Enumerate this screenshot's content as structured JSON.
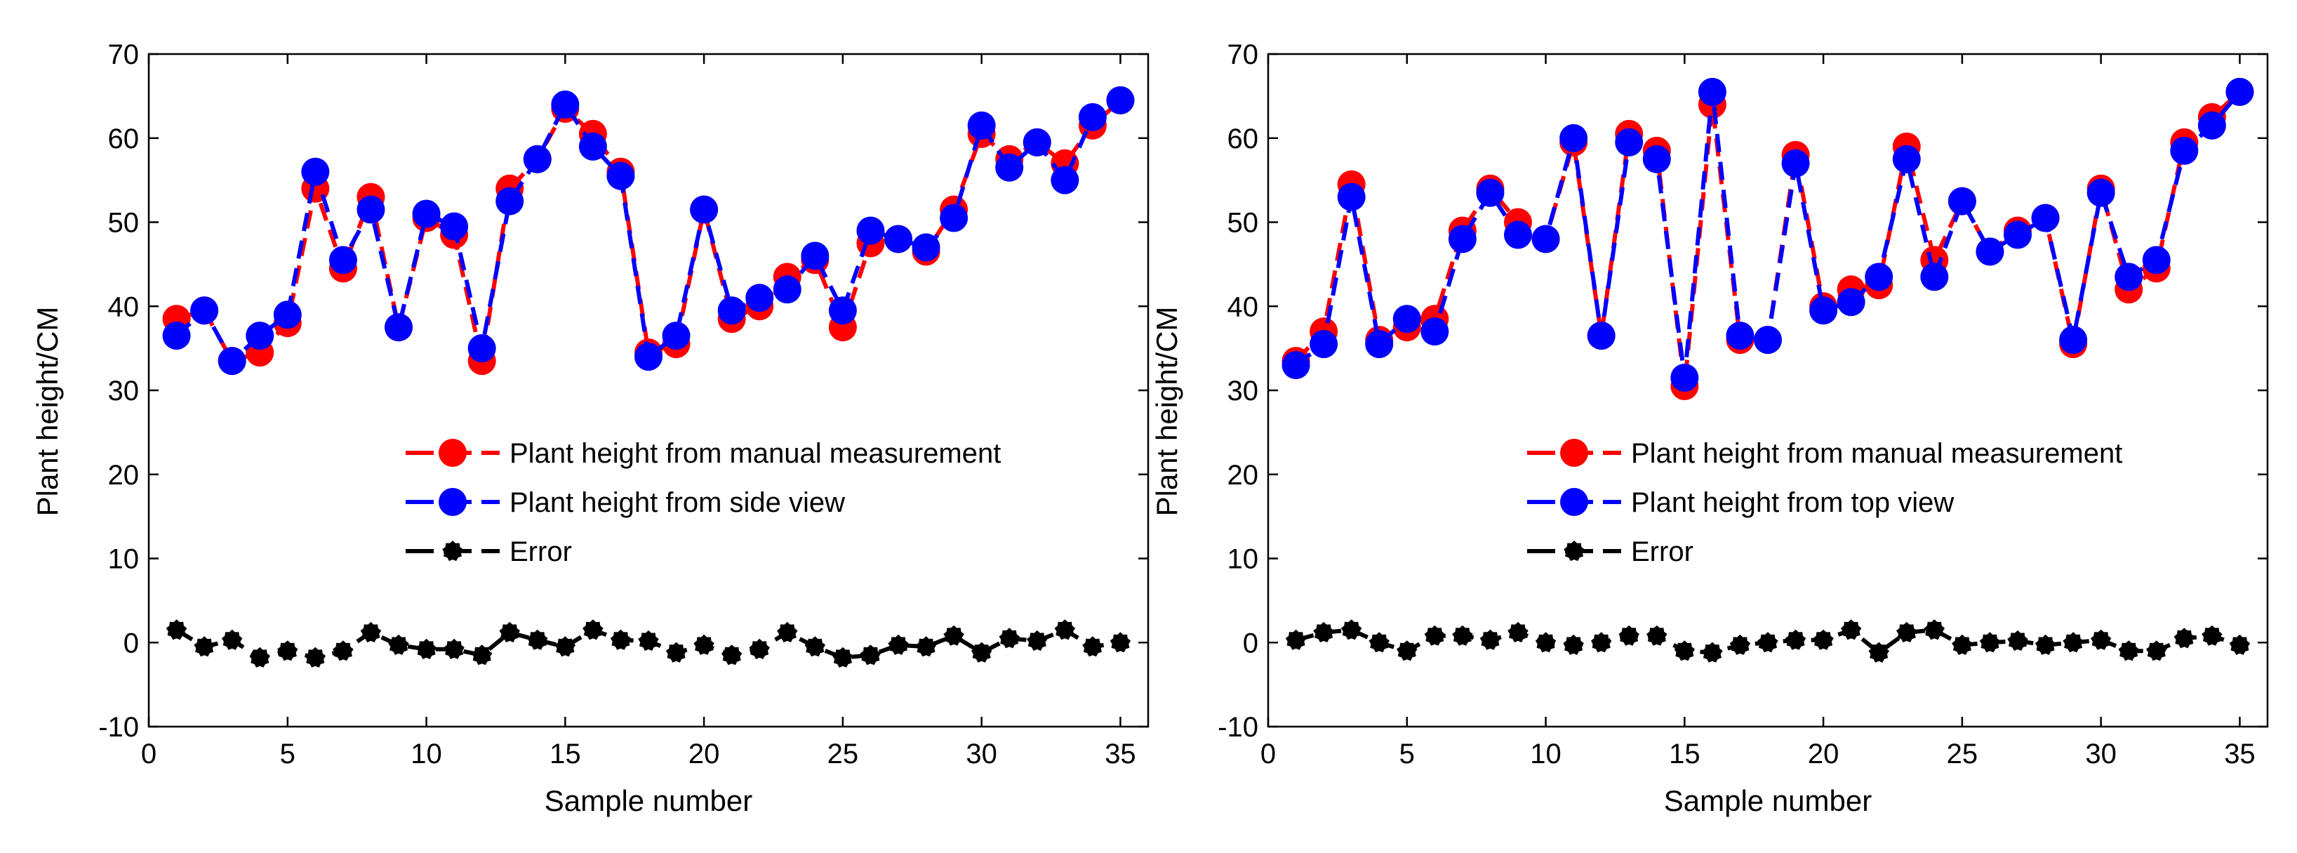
{
  "chart_data": [
    {
      "type": "line",
      "title": "",
      "xlabel": "Sample number",
      "ylabel": "Plant height/CM",
      "xlim": [
        0,
        36
      ],
      "ylim": [
        -10,
        70
      ],
      "xticks": [
        "0",
        "5",
        "10",
        "15",
        "20",
        "25",
        "30",
        "35"
      ],
      "yticks": [
        "-10",
        "0",
        "10",
        "20",
        "30",
        "40",
        "50",
        "60",
        "70"
      ],
      "legend_position": "center",
      "x": [
        1,
        2,
        3,
        4,
        5,
        6,
        7,
        8,
        9,
        10,
        11,
        12,
        13,
        14,
        15,
        16,
        17,
        18,
        19,
        20,
        21,
        22,
        23,
        24,
        25,
        26,
        27,
        28,
        29,
        30,
        31,
        32,
        33,
        34,
        35
      ],
      "series": [
        {
          "name": "Plant height from manual measurement",
          "color": "#ff0000",
          "values": [
            38.5,
            39.5,
            33.5,
            34.5,
            38.0,
            54.0,
            44.5,
            53.0,
            37.5,
            50.5,
            48.5,
            33.5,
            54.0,
            57.5,
            63.5,
            60.5,
            56.0,
            34.5,
            35.5,
            51.5,
            38.5,
            40.0,
            43.5,
            45.5,
            37.5,
            47.5,
            48.0,
            46.5,
            51.5,
            60.5,
            57.5,
            59.5,
            57.0,
            61.5,
            64.5
          ]
        },
        {
          "name": "Plant height from side view",
          "color": "#0000ff",
          "values": [
            36.5,
            39.5,
            33.5,
            36.5,
            39.0,
            56.0,
            45.5,
            51.5,
            37.5,
            51.0,
            49.5,
            35.0,
            52.5,
            57.5,
            64.0,
            59.0,
            55.5,
            34.0,
            36.5,
            51.5,
            39.5,
            41.0,
            42.0,
            46.0,
            39.5,
            49.0,
            48.0,
            47.0,
            50.5,
            61.5,
            56.5,
            59.5,
            55.0,
            62.5,
            64.5
          ]
        },
        {
          "name": "Error",
          "color": "#000000",
          "values": [
            1.5,
            -0.5,
            0.3,
            -1.8,
            -1.0,
            -1.8,
            -1.0,
            1.2,
            -0.3,
            -0.8,
            -0.8,
            -1.5,
            1.2,
            0.3,
            -0.5,
            1.5,
            0.3,
            0.2,
            -1.2,
            -0.3,
            -1.5,
            -0.8,
            1.2,
            -0.5,
            -1.8,
            -1.5,
            -0.3,
            -0.5,
            0.8,
            -1.2,
            0.5,
            0.2,
            1.5,
            -0.5,
            0.0
          ]
        }
      ]
    },
    {
      "type": "line",
      "title": "",
      "xlabel": "Sample number",
      "ylabel": "Plant height/CM",
      "xlim": [
        0,
        36
      ],
      "ylim": [
        -10,
        70
      ],
      "xticks": [
        "0",
        "5",
        "10",
        "15",
        "20",
        "25",
        "30",
        "35"
      ],
      "yticks": [
        "-10",
        "0",
        "10",
        "20",
        "30",
        "40",
        "50",
        "60",
        "70"
      ],
      "legend_position": "center",
      "x": [
        1,
        2,
        3,
        4,
        5,
        6,
        7,
        8,
        9,
        10,
        11,
        12,
        13,
        14,
        15,
        16,
        17,
        18,
        19,
        20,
        21,
        22,
        23,
        24,
        25,
        26,
        27,
        28,
        29,
        30,
        31,
        32,
        33,
        34,
        35
      ],
      "series": [
        {
          "name": "Plant height from manual measurement",
          "color": "#ff0000",
          "values": [
            33.5,
            37.0,
            54.5,
            36.0,
            37.5,
            38.5,
            49.0,
            54.0,
            50.0,
            48.0,
            59.5,
            36.5,
            60.5,
            58.5,
            30.5,
            64.0,
            36.0,
            36.0,
            58.0,
            40.0,
            42.0,
            42.5,
            59.0,
            45.5,
            52.5,
            46.5,
            49.0,
            50.5,
            35.5,
            54.0,
            42.0,
            44.5,
            59.5,
            62.5,
            65.5
          ]
        },
        {
          "name": "Plant height from top view",
          "color": "#0000ff",
          "values": [
            33.0,
            35.5,
            53.0,
            35.5,
            38.5,
            37.0,
            48.0,
            53.5,
            48.5,
            48.0,
            60.0,
            36.5,
            59.5,
            57.5,
            31.5,
            65.5,
            36.5,
            36.0,
            57.0,
            39.5,
            40.5,
            43.5,
            57.5,
            43.5,
            52.5,
            46.5,
            48.5,
            50.5,
            36.0,
            53.5,
            43.5,
            45.5,
            58.5,
            61.5,
            65.5
          ]
        },
        {
          "name": "Error",
          "color": "#000000",
          "values": [
            0.3,
            1.2,
            1.5,
            0.0,
            -1.0,
            0.8,
            0.8,
            0.3,
            1.2,
            0.0,
            -0.3,
            0.0,
            0.8,
            0.8,
            -1.0,
            -1.2,
            -0.3,
            0.0,
            0.3,
            0.3,
            1.5,
            -1.2,
            1.2,
            1.5,
            -0.3,
            0.0,
            0.2,
            -0.3,
            0.0,
            0.3,
            -1.0,
            -1.0,
            0.5,
            0.8,
            -0.3
          ]
        }
      ]
    }
  ]
}
